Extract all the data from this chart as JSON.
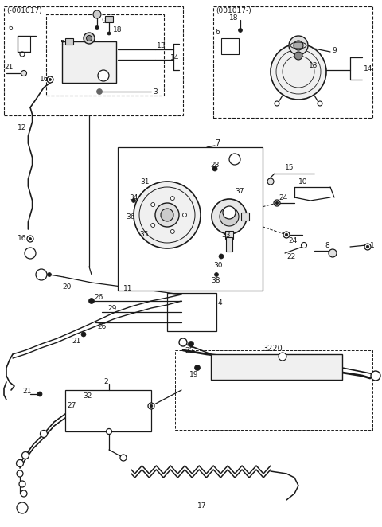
{
  "bg_color": "#ffffff",
  "lc": "#1a1a1a",
  "figsize": [
    4.8,
    6.62
  ],
  "dpi": 100,
  "box1_label": "(-001017)",
  "box2_label": "(001017-)",
  "box3_label": "7"
}
